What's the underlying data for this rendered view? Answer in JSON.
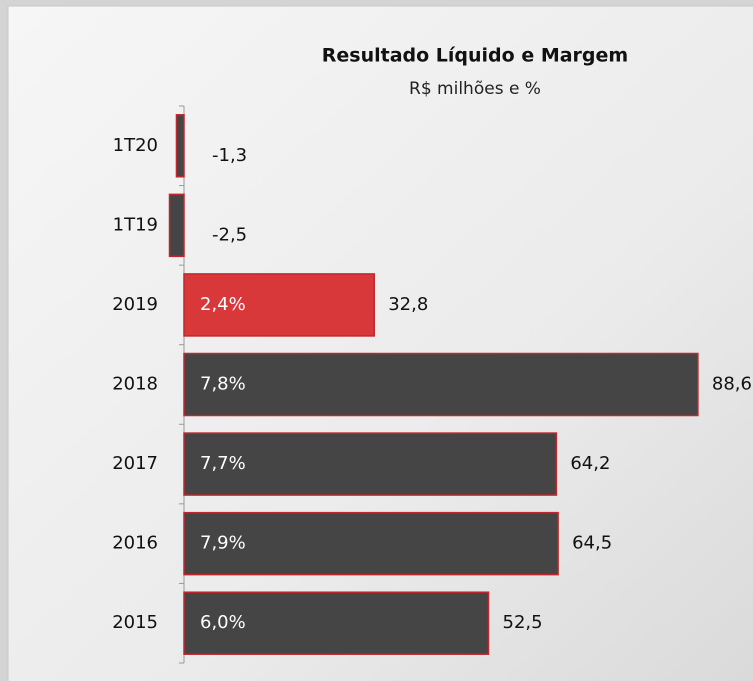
{
  "chart_data": {
    "type": "hbar",
    "title": "Resultado Líquido e Margem",
    "subtitle": "R$ milhões e %",
    "categories": [
      "1T20",
      "1T19",
      "2019",
      "2018",
      "2017",
      "2016",
      "2015"
    ],
    "values": [
      -1.3,
      -2.5,
      32.8,
      88.6,
      64.2,
      64.5,
      52.5
    ],
    "value_labels": [
      "-1,3",
      "-2,5",
      "32,8",
      "88,6",
      "64,2",
      "64,5",
      "52,5"
    ],
    "margins": [
      null,
      null,
      2.4,
      7.8,
      7.7,
      7.9,
      6.0
    ],
    "margin_labels": [
      null,
      null,
      "2,4%",
      "7,8%",
      "7,7%",
      "7,9%",
      "6,0%"
    ],
    "colors": [
      "#454545",
      "#454545",
      "#d9383a",
      "#454545",
      "#454545",
      "#454545",
      "#454545"
    ],
    "edge_color": "#c0272d",
    "xlim": [
      -30,
      100
    ]
  }
}
